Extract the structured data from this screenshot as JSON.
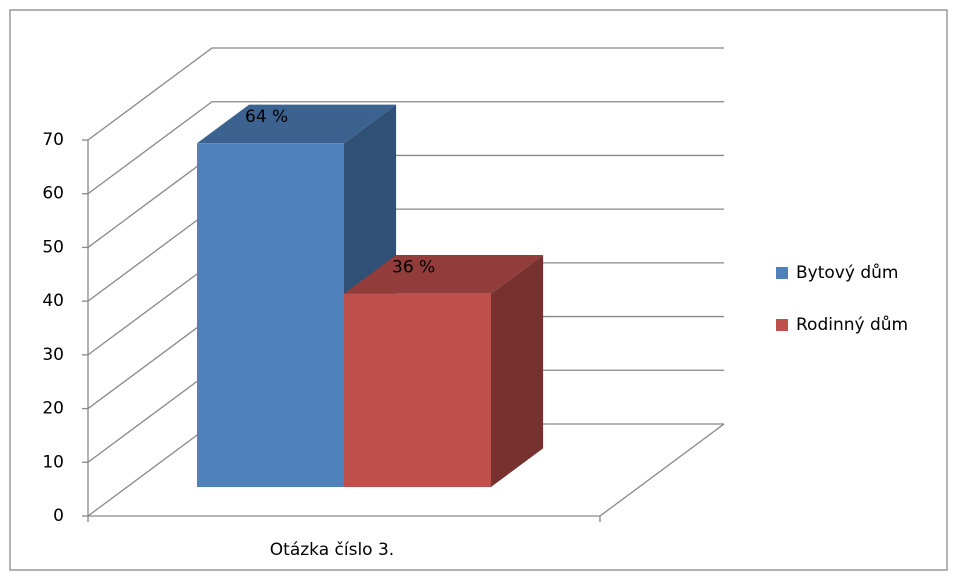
{
  "chart_data": {
    "type": "bar",
    "categories": [
      "Otázka číslo 3."
    ],
    "series": [
      {
        "name": "Bytový dům",
        "color": "#4f81bd",
        "values": [
          64
        ],
        "value_labels": [
          "64 %"
        ]
      },
      {
        "name": "Rodinný dům",
        "color": "#c0504d",
        "values": [
          36
        ],
        "value_labels": [
          "36 %"
        ]
      }
    ],
    "ylim": [
      0,
      70
    ],
    "yticks": [
      0,
      10,
      20,
      30,
      40,
      50,
      60,
      70
    ],
    "grid": true,
    "legend": "right"
  }
}
